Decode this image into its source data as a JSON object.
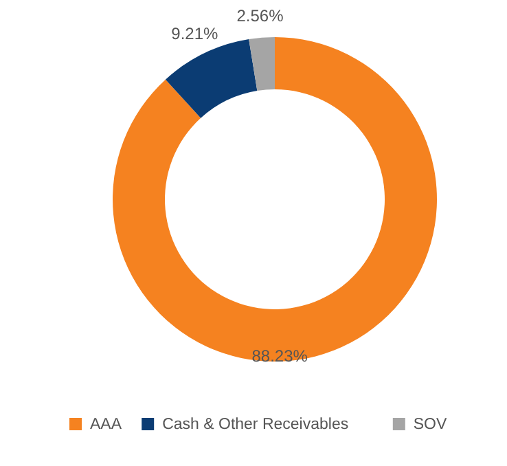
{
  "chart_data": {
    "type": "donut",
    "categories": [
      "AAA",
      "Cash & Other Receivables",
      "SOV"
    ],
    "values": [
      88.23,
      9.21,
      2.56
    ],
    "colors": [
      "#f58220",
      "#0b3c73",
      "#a5a5a5"
    ],
    "value_labels": [
      "88.23%",
      "9.21%",
      "2.56%"
    ],
    "legend": "bottom"
  }
}
